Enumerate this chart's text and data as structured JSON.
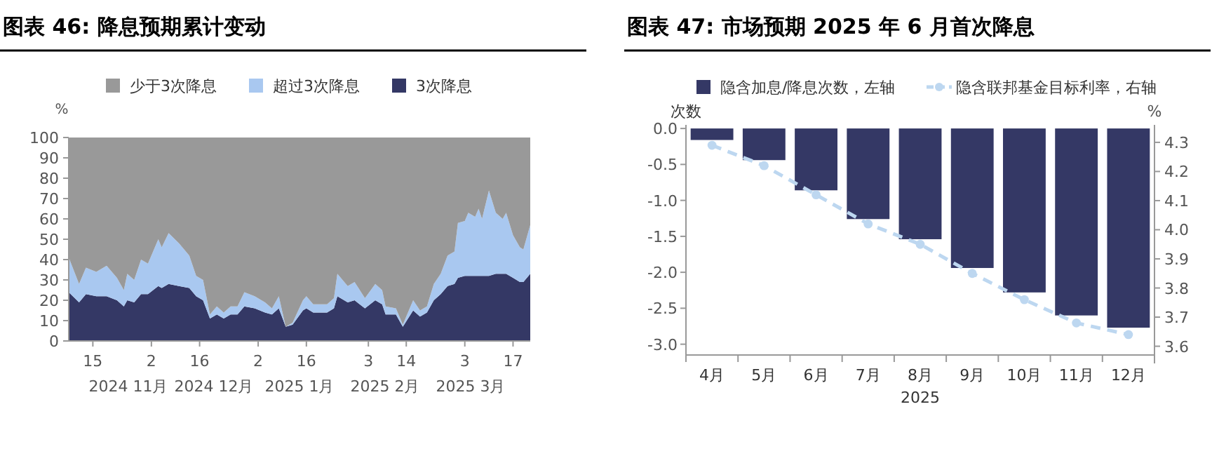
{
  "chart_data": [
    {
      "type": "area",
      "title": "图表 46: 降息预期累计变动",
      "ylabel": "%",
      "stacked": true,
      "legend": "top",
      "x": [
        "2024-11-08",
        "2024-11-11",
        "2024-11-13",
        "2024-11-16",
        "2024-11-19",
        "2024-11-22",
        "2024-11-24",
        "2024-11-25",
        "2024-11-27",
        "2024-11-29",
        "2024-12-01",
        "2024-12-04",
        "2024-12-05",
        "2024-12-07",
        "2024-12-10",
        "2024-12-13",
        "2024-12-15",
        "2024-12-17",
        "2024-12-19",
        "2024-12-21",
        "2024-12-23",
        "2024-12-25",
        "2024-12-27",
        "2024-12-29",
        "2025-01-01",
        "2025-01-04",
        "2025-01-06",
        "2025-01-08",
        "2025-01-10",
        "2025-01-12",
        "2025-01-15",
        "2025-01-16",
        "2025-01-18",
        "2025-01-22",
        "2025-01-24",
        "2025-01-25",
        "2025-01-28",
        "2025-01-30",
        "2025-02-02",
        "2025-02-05",
        "2025-02-07",
        "2025-02-08",
        "2025-02-11",
        "2025-02-13",
        "2025-02-16",
        "2025-02-18",
        "2025-02-20",
        "2025-02-22",
        "2025-02-24",
        "2025-02-26",
        "2025-02-28",
        "2025-03-01",
        "2025-03-03",
        "2025-03-04",
        "2025-03-06",
        "2025-03-07",
        "2025-03-08",
        "2025-03-10",
        "2025-03-12",
        "2025-03-14",
        "2025-03-15",
        "2025-03-17",
        "2025-03-19",
        "2025-03-20",
        "2025-03-22"
      ],
      "series": [
        {
          "name": "3次降息",
          "color": "#343865",
          "values": [
            24,
            19,
            23,
            22,
            22,
            20,
            17,
            20,
            19,
            23,
            23,
            27,
            26,
            28,
            27,
            26,
            22,
            20,
            11,
            13,
            11,
            13,
            13,
            17,
            16,
            14,
            13,
            16,
            7,
            8,
            15,
            16,
            14,
            14,
            16,
            22,
            19,
            20,
            16,
            20,
            18,
            13,
            13,
            7,
            15,
            12,
            14,
            20,
            23,
            27,
            28,
            31,
            32,
            32,
            32,
            32,
            32,
            32,
            33,
            33,
            33,
            31,
            29,
            29,
            33
          ]
        },
        {
          "name": "超过3次降息",
          "color": "#a9c8f0",
          "values": [
            17,
            9,
            13,
            12,
            15,
            11,
            8,
            13,
            11,
            17,
            15,
            23,
            20,
            25,
            21,
            16,
            10,
            10,
            2,
            4,
            3,
            4,
            4,
            7,
            6,
            5,
            3,
            6,
            0,
            1,
            5,
            6,
            4,
            4,
            5,
            11,
            8,
            9,
            5,
            8,
            7,
            4,
            3,
            1,
            5,
            3,
            3,
            8,
            10,
            15,
            16,
            27,
            27,
            31,
            29,
            33,
            28,
            42,
            30,
            27,
            30,
            21,
            17,
            16,
            24
          ]
        },
        {
          "name": "少于3次降息",
          "color": "#999999",
          "values": [
            59,
            72,
            64,
            66,
            63,
            69,
            75,
            67,
            70,
            60,
            62,
            50,
            54,
            47,
            52,
            58,
            68,
            70,
            87,
            83,
            86,
            83,
            83,
            76,
            78,
            81,
            84,
            78,
            93,
            91,
            80,
            78,
            82,
            82,
            79,
            67,
            73,
            71,
            79,
            72,
            75,
            83,
            84,
            92,
            80,
            85,
            83,
            72,
            67,
            58,
            56,
            42,
            41,
            37,
            39,
            35,
            40,
            26,
            37,
            40,
            37,
            48,
            54,
            55,
            43
          ]
        }
      ],
      "xlim": [
        "2024-11-08",
        "2025-03-22"
      ],
      "xticks": [
        {
          "value": "2024-11-15",
          "label": "15"
        },
        {
          "value": "2024-12-02",
          "label": "2"
        },
        {
          "value": "2024-12-16",
          "label": "16"
        },
        {
          "value": "2025-01-02",
          "label": "2"
        },
        {
          "value": "2025-01-16",
          "label": "16"
        },
        {
          "value": "2025-02-03",
          "label": "3"
        },
        {
          "value": "2025-02-14",
          "label": "14"
        },
        {
          "value": "2025-03-03",
          "label": "3"
        },
        {
          "value": "2025-03-17",
          "label": "17"
        }
      ],
      "ylim": [
        0,
        100
      ],
      "yticks": [
        0,
        10,
        20,
        30,
        40,
        50,
        60,
        70,
        80,
        90,
        100
      ],
      "annotations": [
        "2024 11月",
        "2024 12月",
        "2025 1月",
        "2025 2月",
        "2025 3月"
      ]
    },
    {
      "type": "bar",
      "title": "图表 47: 市场预期 2025 年 6 月首次降息",
      "ylabel": "次数",
      "y2label": "%",
      "xlabel": "2025",
      "legend": "top",
      "categories": [
        "4月",
        "5月",
        "6月",
        "7月",
        "8月",
        "9月",
        "10月",
        "11月",
        "12月"
      ],
      "series": [
        {
          "name": "隐含加息/降息次数，左轴",
          "type": "bar",
          "color": "#343865",
          "values": [
            -0.16,
            -0.44,
            -0.86,
            -1.26,
            -1.54,
            -1.94,
            -2.28,
            -2.6,
            -2.77
          ]
        },
        {
          "name": "隐含联邦基金目标利率，右轴",
          "type": "line",
          "axis": "y2",
          "color": "#bdd7f0",
          "line_style": "dashed",
          "marker": "circle",
          "values": [
            4.29,
            4.22,
            4.12,
            4.02,
            3.95,
            3.85,
            3.76,
            3.68,
            3.64
          ]
        }
      ],
      "ylim": [
        -3.15,
        0.05
      ],
      "yticks": [
        {
          "value": -3,
          "label": "-3.0"
        },
        -2.5,
        {
          "value": -2,
          "label": "-2.0"
        },
        -1.5,
        {
          "value": -1,
          "label": "-1.0"
        },
        -0.5,
        {
          "value": 0,
          "label": "0.0"
        }
      ],
      "y2lim": [
        3.57,
        4.36
      ],
      "y2ticks": [
        3.6,
        3.7,
        3.8,
        3.9,
        {
          "value": 4,
          "label": "4.0"
        },
        4.1,
        4.2,
        4.3
      ]
    }
  ]
}
